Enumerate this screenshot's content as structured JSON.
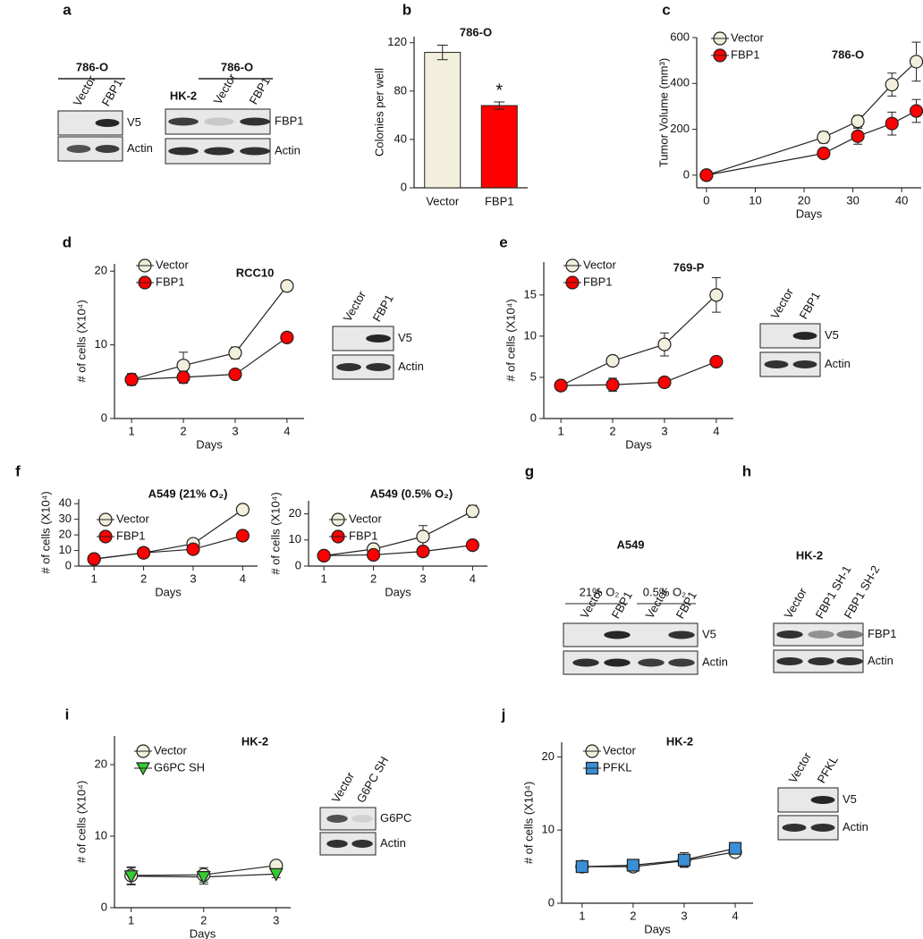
{
  "panel_letters": [
    "a",
    "b",
    "c",
    "d",
    "e",
    "f",
    "g",
    "h",
    "i",
    "j"
  ],
  "chart_data": [
    {
      "type": "bar",
      "title": "786-O",
      "ylabel": "Colonies per well",
      "categories": [
        "Vector",
        "FBP1"
      ],
      "values": [
        112,
        68
      ],
      "errors": [
        6,
        3
      ],
      "colors": [
        "#f2f0dc",
        "#ff0000"
      ],
      "annotation": "*",
      "ylim": [
        0,
        125
      ],
      "yticks": [
        0,
        40,
        80,
        120
      ]
    },
    {
      "type": "line",
      "title": "786-O",
      "xlabel": "Days",
      "ylabel": "Tumor Volume (mm³)",
      "x": [
        0,
        24,
        31,
        38,
        43
      ],
      "series": [
        {
          "name": "Vector",
          "color": "#f2f0dc",
          "marker": "circle",
          "values": [
            0,
            165,
            235,
            395,
            495
          ],
          "errors": [
            0,
            25,
            25,
            50,
            85
          ]
        },
        {
          "name": "FBP1",
          "color": "#ff0000",
          "marker": "circle",
          "values": [
            0,
            95,
            170,
            225,
            280
          ],
          "errors": [
            0,
            15,
            35,
            50,
            50
          ]
        }
      ],
      "xlim": [
        -2,
        44
      ],
      "xticks": [
        0,
        10,
        20,
        30,
        40
      ],
      "ylim": [
        -55,
        600
      ],
      "yticks": [
        0,
        200,
        400,
        600
      ]
    },
    {
      "type": "line",
      "title": "RCC10",
      "xlabel": "Days",
      "ylabel": "# of cells (X10⁴)",
      "x": [
        1,
        2,
        3,
        4
      ],
      "series": [
        {
          "name": "Vector",
          "color": "#f2f0dc",
          "marker": "circle",
          "values": [
            5.3,
            7.2,
            8.9,
            18
          ],
          "errors": [
            0.8,
            1.8,
            0.8,
            0.6
          ]
        },
        {
          "name": "FBP1",
          "color": "#ff0000",
          "marker": "circle",
          "values": [
            5.3,
            5.6,
            6,
            11
          ],
          "errors": [
            0.8,
            0.8,
            0.6,
            0.6
          ]
        }
      ],
      "xlim": [
        0.67,
        4.33
      ],
      "xticks": [
        1,
        2,
        3,
        4
      ],
      "ylim": [
        0,
        21
      ],
      "yticks": [
        0,
        10,
        20
      ]
    },
    {
      "type": "line",
      "title": "769-P",
      "xlabel": "Days",
      "ylabel": "# of cells (X10⁴)",
      "x": [
        1,
        2,
        3,
        4
      ],
      "series": [
        {
          "name": "Vector",
          "color": "#f2f0dc",
          "marker": "circle",
          "values": [
            4,
            7,
            9,
            15
          ],
          "errors": [
            0.3,
            0.6,
            1.4,
            2.1
          ]
        },
        {
          "name": "FBP1",
          "color": "#ff0000",
          "marker": "circle",
          "values": [
            4,
            4.1,
            4.4,
            6.9
          ],
          "errors": [
            0.3,
            0.8,
            0.5,
            0.5
          ]
        }
      ],
      "xlim": [
        0.67,
        4.33
      ],
      "xticks": [
        1,
        2,
        3,
        4
      ],
      "ylim": [
        0,
        19
      ],
      "yticks": [
        0,
        5,
        10,
        15
      ]
    },
    {
      "type": "line",
      "title": "A549 (21% O₂)",
      "xlabel": "Days",
      "ylabel": "# of cells (X10⁴)",
      "x": [
        1,
        2,
        3,
        4
      ],
      "series": [
        {
          "name": "Vector",
          "color": "#f2f0dc",
          "marker": "circle",
          "values": [
            4.5,
            8.5,
            14.3,
            36.2
          ],
          "errors": [
            0.5,
            1,
            2,
            2.5
          ]
        },
        {
          "name": "FBP1",
          "color": "#ff0000",
          "marker": "circle",
          "values": [
            4.5,
            8.5,
            10.8,
            19.5
          ],
          "errors": [
            0.5,
            1.5,
            2.5,
            0.8
          ]
        }
      ],
      "xlim": [
        0.69,
        4.3
      ],
      "xticks": [
        1,
        2,
        3,
        4
      ],
      "ylim": [
        0,
        43
      ],
      "yticks": [
        0,
        10,
        20,
        30,
        40
      ]
    },
    {
      "type": "line",
      "title": "A549 (0.5% O₂)",
      "xlabel": "Days",
      "ylabel": "# of cells (X10⁴)",
      "x": [
        1,
        2,
        3,
        4
      ],
      "series": [
        {
          "name": "Vector",
          "color": "#f2f0dc",
          "marker": "circle",
          "values": [
            4,
            6.5,
            11.3,
            21
          ],
          "errors": [
            1.5,
            1.8,
            4.2,
            2.3
          ]
        },
        {
          "name": "FBP1",
          "color": "#ff0000",
          "marker": "circle",
          "values": [
            4,
            4.3,
            5.6,
            8
          ],
          "errors": [
            1.5,
            1.3,
            1.6,
            1
          ]
        }
      ],
      "xlim": [
        0.69,
        4.3
      ],
      "xticks": [
        1,
        2,
        3,
        4
      ],
      "ylim": [
        0,
        25
      ],
      "yticks": [
        0,
        10,
        20
      ]
    },
    {
      "type": "line",
      "title": "HK-2",
      "xlabel": "Days",
      "ylabel": "# of cells (X10⁴)",
      "x": [
        1,
        2,
        3
      ],
      "series": [
        {
          "name": "Vector",
          "color": "#f2f0dc",
          "marker": "circle",
          "values": [
            4.5,
            4.6,
            5.9
          ],
          "errors": [
            1.2,
            1,
            0.4
          ]
        },
        {
          "name": "G6PC SH",
          "color": "#33cc33",
          "marker": "triangle",
          "values": [
            4.4,
            4.3,
            4.7
          ],
          "errors": [
            1.2,
            1,
            0.5
          ]
        }
      ],
      "xlim": [
        0.77,
        3.2
      ],
      "xticks": [
        1,
        2,
        3
      ],
      "ylim": [
        0,
        24
      ],
      "yticks": [
        0,
        10,
        20
      ]
    },
    {
      "type": "line",
      "title": "HK-2",
      "xlabel": "Days",
      "ylabel": "# of cells (X10⁴)",
      "x": [
        1,
        2,
        3,
        4
      ],
      "series": [
        {
          "name": "Vector",
          "color": "#f2f0dc",
          "marker": "circle",
          "values": [
            5,
            5,
            5.8,
            7
          ],
          "errors": [
            0.4,
            0.4,
            0.8,
            0.5
          ]
        },
        {
          "name": "PFKL",
          "color": "#3a8fd8",
          "marker": "square",
          "values": [
            5,
            5.2,
            5.9,
            7.5
          ],
          "errors": [
            0.4,
            0.6,
            1,
            0.8
          ]
        }
      ],
      "xlim": [
        0.6,
        4.35
      ],
      "xticks": [
        1,
        2,
        3,
        4
      ],
      "ylim": [
        0,
        22
      ],
      "yticks": [
        0,
        10,
        20
      ]
    }
  ],
  "blots": [
    {
      "header": "786-O",
      "lanes": [
        "Vector",
        "FBP1"
      ],
      "rows": [
        "V5",
        "Actin"
      ]
    },
    {
      "header": "786-O",
      "lanes": [
        "HK-2",
        "Vector",
        "FBP1"
      ],
      "rows": [
        "FBP1",
        "Actin"
      ]
    },
    {
      "lanes": [
        "Vector",
        "FBP1"
      ],
      "rows": [
        "V5",
        "Actin"
      ]
    },
    {
      "lanes": [
        "Vector",
        "FBP1"
      ],
      "rows": [
        "V5",
        "Actin"
      ]
    },
    {
      "header": "A549",
      "groups": [
        "21% O₂",
        "0.5% O₂"
      ],
      "lanes": [
        "Vector",
        "FBP1",
        "Vector",
        "FBP1"
      ],
      "rows": [
        "V5",
        "Actin"
      ]
    },
    {
      "header": "HK-2",
      "lanes": [
        "Vector",
        "FBP1 SH-1",
        "FBP1 SH-2"
      ],
      "rows": [
        "FBP1",
        "Actin"
      ]
    },
    {
      "lanes": [
        "Vector",
        "G6PC SH"
      ],
      "rows": [
        "G6PC",
        "Actin"
      ]
    },
    {
      "lanes": [
        "Vector",
        "PFKL"
      ],
      "rows": [
        "V5",
        "Actin"
      ]
    }
  ]
}
